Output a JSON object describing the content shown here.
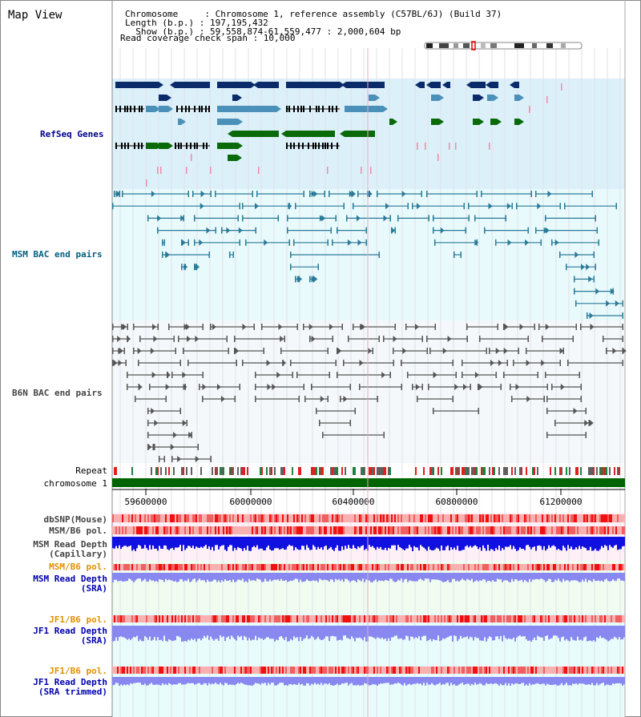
{
  "title": "Map View",
  "header": {
    "line1": "Chromosome     : Chromosome 1, reference assembly (C57BL/6J) (Build 37)",
    "line2": "Length (b.p.) : 197,195,432",
    "line3": "  Show (b.p.) : 59,558,874-61,559,477 : 2,000,604 bp",
    "line4": "Read coverage check span : 10,000"
  },
  "tracks": {
    "refseq": {
      "label": "RefSeq Genes",
      "color": "#00008b"
    },
    "msm_bac": {
      "label": "MSM BAC end pairs",
      "color": "#006080"
    },
    "b6n_bac": {
      "label": "B6N BAC end pairs",
      "color": "#444444"
    },
    "repeat": {
      "label": "Repeat"
    },
    "chrom": {
      "label": "chromosome 1"
    },
    "dbsnp": {
      "label": "dbSNP(Mouse)"
    },
    "msm_pol1": {
      "label": "MSM/B6 pol."
    },
    "msm_depth_cap": {
      "line1": "MSM Read Depth",
      "line2": "(Capillary)"
    },
    "msm_pol2": {
      "label": "MSM/B6 pol."
    },
    "msm_depth_sra": {
      "line1": "MSM Read Depth",
      "line2": "(SRA)"
    },
    "jf1_pol1": {
      "label": "JF1/B6 pol."
    },
    "jf1_depth_sra": {
      "line1": "JF1 Read Depth",
      "line2": "(SRA)"
    },
    "jf1_pol2": {
      "label": "JF1/B6 pol."
    },
    "jf1_depth_trim": {
      "line1": "JF1 Read Depth",
      "line2": "(SRA trimmed)"
    }
  },
  "axis": {
    "start": 59558874,
    "end": 61559477,
    "ticks": [
      "59600000",
      "60000000",
      "60400000",
      "60800000",
      "61200000"
    ]
  },
  "colors": {
    "refseq_bg": "#dcf0fa",
    "msm_bg": "#e8fafc",
    "b6n_bg": "#f5f8fa",
    "gene_dark": "#0a2a6a",
    "gene_mid": "#4a90b8",
    "gene_green": "#0a6a0a",
    "depth_dark": "#1010e0",
    "depth_light": "#8888f0",
    "pol_red": "#f01010",
    "orange_label": "#e09000",
    "blue_label": "#0000b0",
    "chrom_green": "#006400"
  }
}
